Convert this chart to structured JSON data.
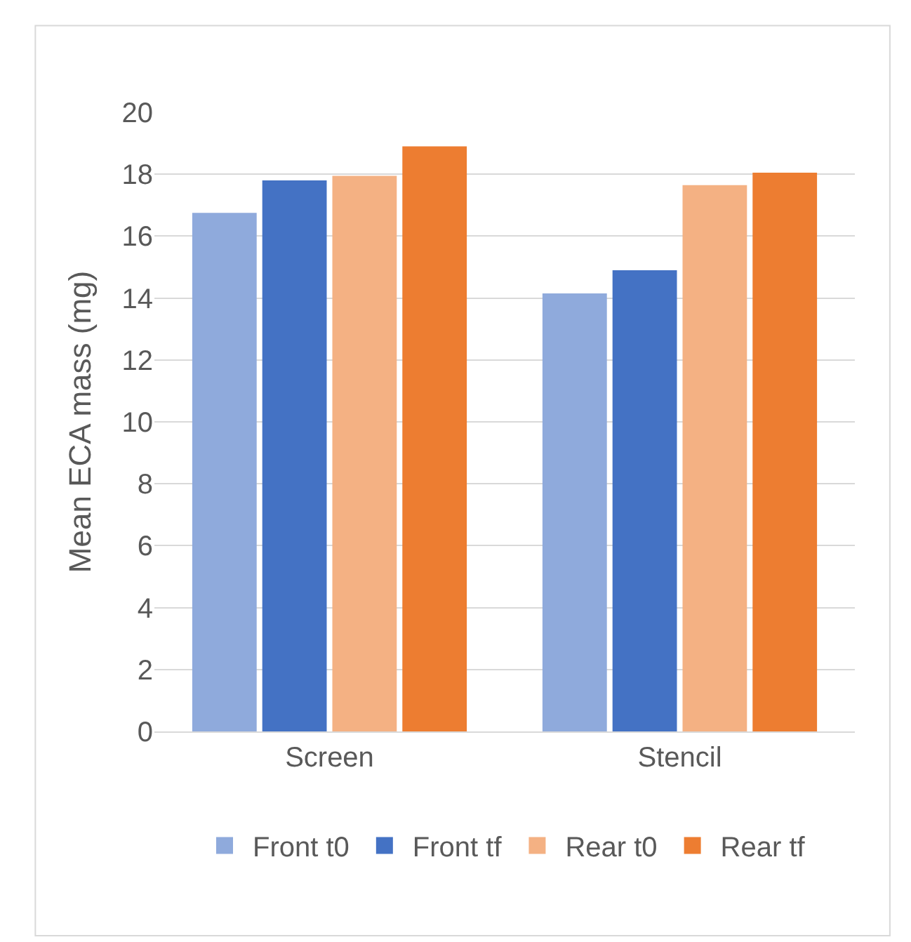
{
  "chart_data": {
    "type": "bar",
    "ylabel": "Mean ECA mass (mg)",
    "categories": [
      "Screen",
      "Stencil"
    ],
    "series": [
      {
        "name": "Front t0",
        "color": "#8faadc",
        "values": [
          16.75,
          14.15
        ]
      },
      {
        "name": "Front tf",
        "color": "#4472c4",
        "values": [
          17.8,
          14.9
        ]
      },
      {
        "name": "Rear t0",
        "color": "#f4b183",
        "values": [
          17.95,
          17.65
        ]
      },
      {
        "name": "Rear tf",
        "color": "#ed7d31",
        "values": [
          18.9,
          18.05
        ]
      }
    ],
    "ylim": [
      0,
      20
    ],
    "yticks": [
      0,
      2,
      4,
      6,
      8,
      10,
      12,
      14,
      16,
      18,
      20
    ],
    "grid": "y",
    "legend": "bottom"
  }
}
